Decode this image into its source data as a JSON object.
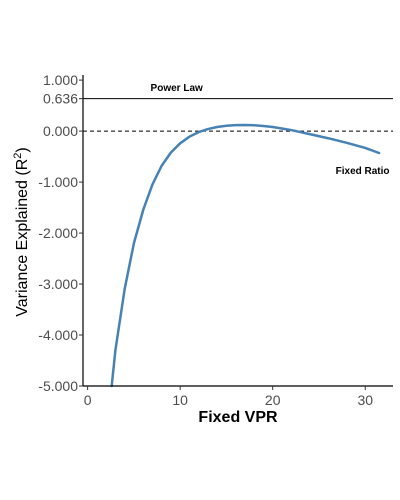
{
  "chart_data": {
    "type": "line",
    "title": "",
    "xlabel": "Fixed VPR",
    "ylabel_main": "Variance Explained (R",
    "ylabel_sup": "2",
    "ylabel_tail": ")",
    "xlim": [
      -0.5,
      33
    ],
    "ylim": [
      -5.0,
      1.1
    ],
    "x_ticks": [
      0,
      10,
      20,
      30
    ],
    "x_tick_labels": [
      "0",
      "10",
      "20",
      "30"
    ],
    "y_ticks": [
      1.0,
      0.636,
      0.0,
      -1.0,
      -2.0,
      -3.0,
      -4.0,
      -5.0
    ],
    "y_tick_labels": [
      "1.000",
      "0.636",
      "0.000",
      "-1.000",
      "-2.000",
      "-3.000",
      "-4.000",
      "-5.000"
    ],
    "grid": false,
    "reference_lines": [
      {
        "name": "Power Law",
        "y": 0.636,
        "style": "solid",
        "x_from": -0.5,
        "x_to": 33
      },
      {
        "name": "zero",
        "y": 0.0,
        "style": "dashed",
        "x_from": -0.5,
        "x_to": 33
      }
    ],
    "series": [
      {
        "name": "Fixed Ratio",
        "color": "#4682b4",
        "x": [
          2.6,
          3.0,
          4.0,
          5.0,
          6.0,
          7.0,
          8.0,
          9.0,
          10.0,
          11.0,
          12.0,
          13.0,
          14.0,
          15.0,
          16.0,
          17.0,
          18.0,
          19.0,
          20.0,
          22.0,
          24.0,
          26.0,
          28.0,
          30.0,
          31.5
        ],
        "y": [
          -5.0,
          -4.3,
          -3.1,
          -2.2,
          -1.55,
          -1.05,
          -0.68,
          -0.42,
          -0.24,
          -0.11,
          -0.02,
          0.04,
          0.08,
          0.105,
          0.118,
          0.12,
          0.115,
          0.1,
          0.08,
          0.02,
          -0.06,
          -0.14,
          -0.23,
          -0.33,
          -0.43
        ]
      }
    ],
    "annotations": [
      {
        "text": "Power Law",
        "x": 6.8,
        "y": 0.79
      },
      {
        "text": "Fixed Ratio",
        "x": 26.8,
        "y": -0.84
      }
    ]
  }
}
